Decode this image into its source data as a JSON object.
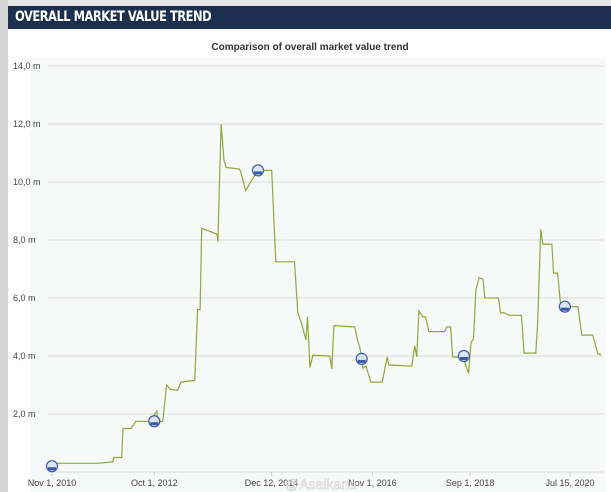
{
  "header": {
    "title": "OVERALL MARKET VALUE TREND"
  },
  "watermark": "@Asaikana",
  "chart_data": {
    "type": "line",
    "title": "Comparison of overall market value trend",
    "xlabel": "",
    "ylabel": "",
    "ylim": [
      0,
      14
    ],
    "yticks": [
      0,
      2,
      4,
      6,
      8,
      10,
      12,
      14
    ],
    "ytick_labels": [
      "",
      "2,0 m",
      "4,0 m",
      "6,0 m",
      "8,0 m",
      "10,0 m",
      "12,0 m",
      "14,0 m"
    ],
    "xticks": [
      "2010-11-01",
      "2012-10-01",
      "2014-12-12",
      "2016-11-01",
      "2018-09-01",
      "2020-07-15"
    ],
    "xtick_labels": [
      "Nov 1, 2010",
      "Oct 1, 2012",
      "Dec 12, 2014",
      "Nov 1, 2016",
      "Sep 1, 2018",
      "Jul 15, 2020"
    ],
    "grid": true,
    "unit": "m",
    "colors": {
      "line": "#8aab3a",
      "grid": "#d8d8d8",
      "header": "#1d2f4f",
      "marker": "#3b5ba8"
    },
    "series": [
      {
        "points": [
          [
            "2010-11-21",
            0.3
          ],
          [
            "2011-09-10",
            0.3
          ],
          [
            "2011-12-21",
            0.35
          ],
          [
            "2011-12-28",
            0.5
          ],
          [
            "2012-02-21",
            0.5
          ],
          [
            "2012-03-01",
            1.5
          ],
          [
            "2012-04-24",
            1.5
          ],
          [
            "2012-05-28",
            1.75
          ],
          [
            "2012-09-01",
            1.75
          ],
          [
            "2012-10-18",
            2.1
          ],
          [
            "2012-10-24",
            1.72
          ],
          [
            "2012-11-28",
            1.75
          ],
          [
            "2012-12-24",
            3.0
          ],
          [
            "2013-01-21",
            2.85
          ],
          [
            "2013-03-10",
            2.82
          ],
          [
            "2013-04-01",
            3.1
          ],
          [
            "2013-06-21",
            3.15
          ],
          [
            "2013-07-04",
            3.15
          ],
          [
            "2013-07-24",
            5.6
          ],
          [
            "2013-08-10",
            5.6
          ],
          [
            "2013-08-21",
            8.4
          ],
          [
            "2013-10-15",
            8.3
          ],
          [
            "2013-12-04",
            8.2
          ],
          [
            "2013-12-10",
            7.95
          ],
          [
            "2014-01-01",
            12.0
          ],
          [
            "2014-01-21",
            10.75
          ],
          [
            "2014-02-04",
            10.5
          ],
          [
            "2014-05-07",
            10.45
          ],
          [
            "2014-05-15",
            10.35
          ],
          [
            "2014-06-18",
            9.7
          ],
          [
            "2014-07-28",
            10.05
          ],
          [
            "2014-09-10",
            10.4
          ],
          [
            "2014-12-13",
            10.4
          ],
          [
            "2015-01-10",
            7.25
          ],
          [
            "2015-05-18",
            7.25
          ],
          [
            "2015-06-10",
            5.5
          ],
          [
            "2015-07-07",
            5.1
          ],
          [
            "2015-08-04",
            4.55
          ],
          [
            "2015-08-15",
            5.35
          ],
          [
            "2015-09-01",
            3.6
          ],
          [
            "2015-09-21",
            4.03
          ],
          [
            "2016-01-15",
            4.0
          ],
          [
            "2016-01-28",
            3.55
          ],
          [
            "2016-02-12",
            5.05
          ],
          [
            "2016-07-04",
            5.0
          ],
          [
            "2016-07-24",
            4.5
          ],
          [
            "2016-08-07",
            4.3
          ],
          [
            "2016-08-28",
            3.58
          ],
          [
            "2016-09-18",
            3.65
          ],
          [
            "2016-10-21",
            3.1
          ],
          [
            "2017-01-07",
            3.1
          ],
          [
            "2017-02-10",
            3.97
          ],
          [
            "2017-02-21",
            3.69
          ],
          [
            "2017-07-28",
            3.65
          ],
          [
            "2017-08-18",
            4.35
          ],
          [
            "2017-09-01",
            3.97
          ],
          [
            "2017-09-15",
            5.56
          ],
          [
            "2017-10-12",
            5.35
          ],
          [
            "2017-11-01",
            5.35
          ],
          [
            "2017-11-21",
            4.84
          ],
          [
            "2018-03-10",
            4.84
          ],
          [
            "2018-03-24",
            5.0
          ],
          [
            "2018-04-21",
            5.0
          ],
          [
            "2018-05-04",
            3.97
          ],
          [
            "2018-07-04",
            3.95
          ],
          [
            "2018-07-18",
            3.9
          ],
          [
            "2018-08-21",
            3.4
          ],
          [
            "2018-09-07",
            4.45
          ],
          [
            "2018-09-24",
            4.6
          ],
          [
            "2018-10-10",
            6.28
          ],
          [
            "2018-11-01",
            6.7
          ],
          [
            "2018-11-28",
            6.65
          ],
          [
            "2018-12-10",
            6.0
          ],
          [
            "2019-03-13",
            6.0
          ],
          [
            "2019-03-28",
            5.48
          ],
          [
            "2019-04-18",
            5.5
          ],
          [
            "2019-05-21",
            5.41
          ],
          [
            "2019-08-18",
            5.4
          ],
          [
            "2019-09-04",
            4.1
          ],
          [
            "2019-11-24",
            4.1
          ],
          [
            "2019-12-07",
            5.2
          ],
          [
            "2019-12-28",
            8.37
          ],
          [
            "2020-01-10",
            7.86
          ],
          [
            "2020-03-13",
            7.86
          ],
          [
            "2020-03-24",
            6.86
          ],
          [
            "2020-04-21",
            6.86
          ],
          [
            "2020-05-13",
            5.7
          ],
          [
            "2020-09-07",
            5.7
          ],
          [
            "2020-10-04",
            4.72
          ],
          [
            "2020-12-18",
            4.72
          ],
          [
            "2021-01-21",
            4.07
          ],
          [
            "2021-02-12",
            4.05
          ]
        ],
        "markers": [
          [
            "2010-11-01",
            0.2
          ],
          [
            "2012-10-01",
            1.75
          ],
          [
            "2014-09-10",
            10.4
          ],
          [
            "2016-08-20",
            3.9
          ],
          [
            "2018-07-20",
            4.0
          ],
          [
            "2020-06-10",
            5.7
          ]
        ]
      }
    ]
  }
}
